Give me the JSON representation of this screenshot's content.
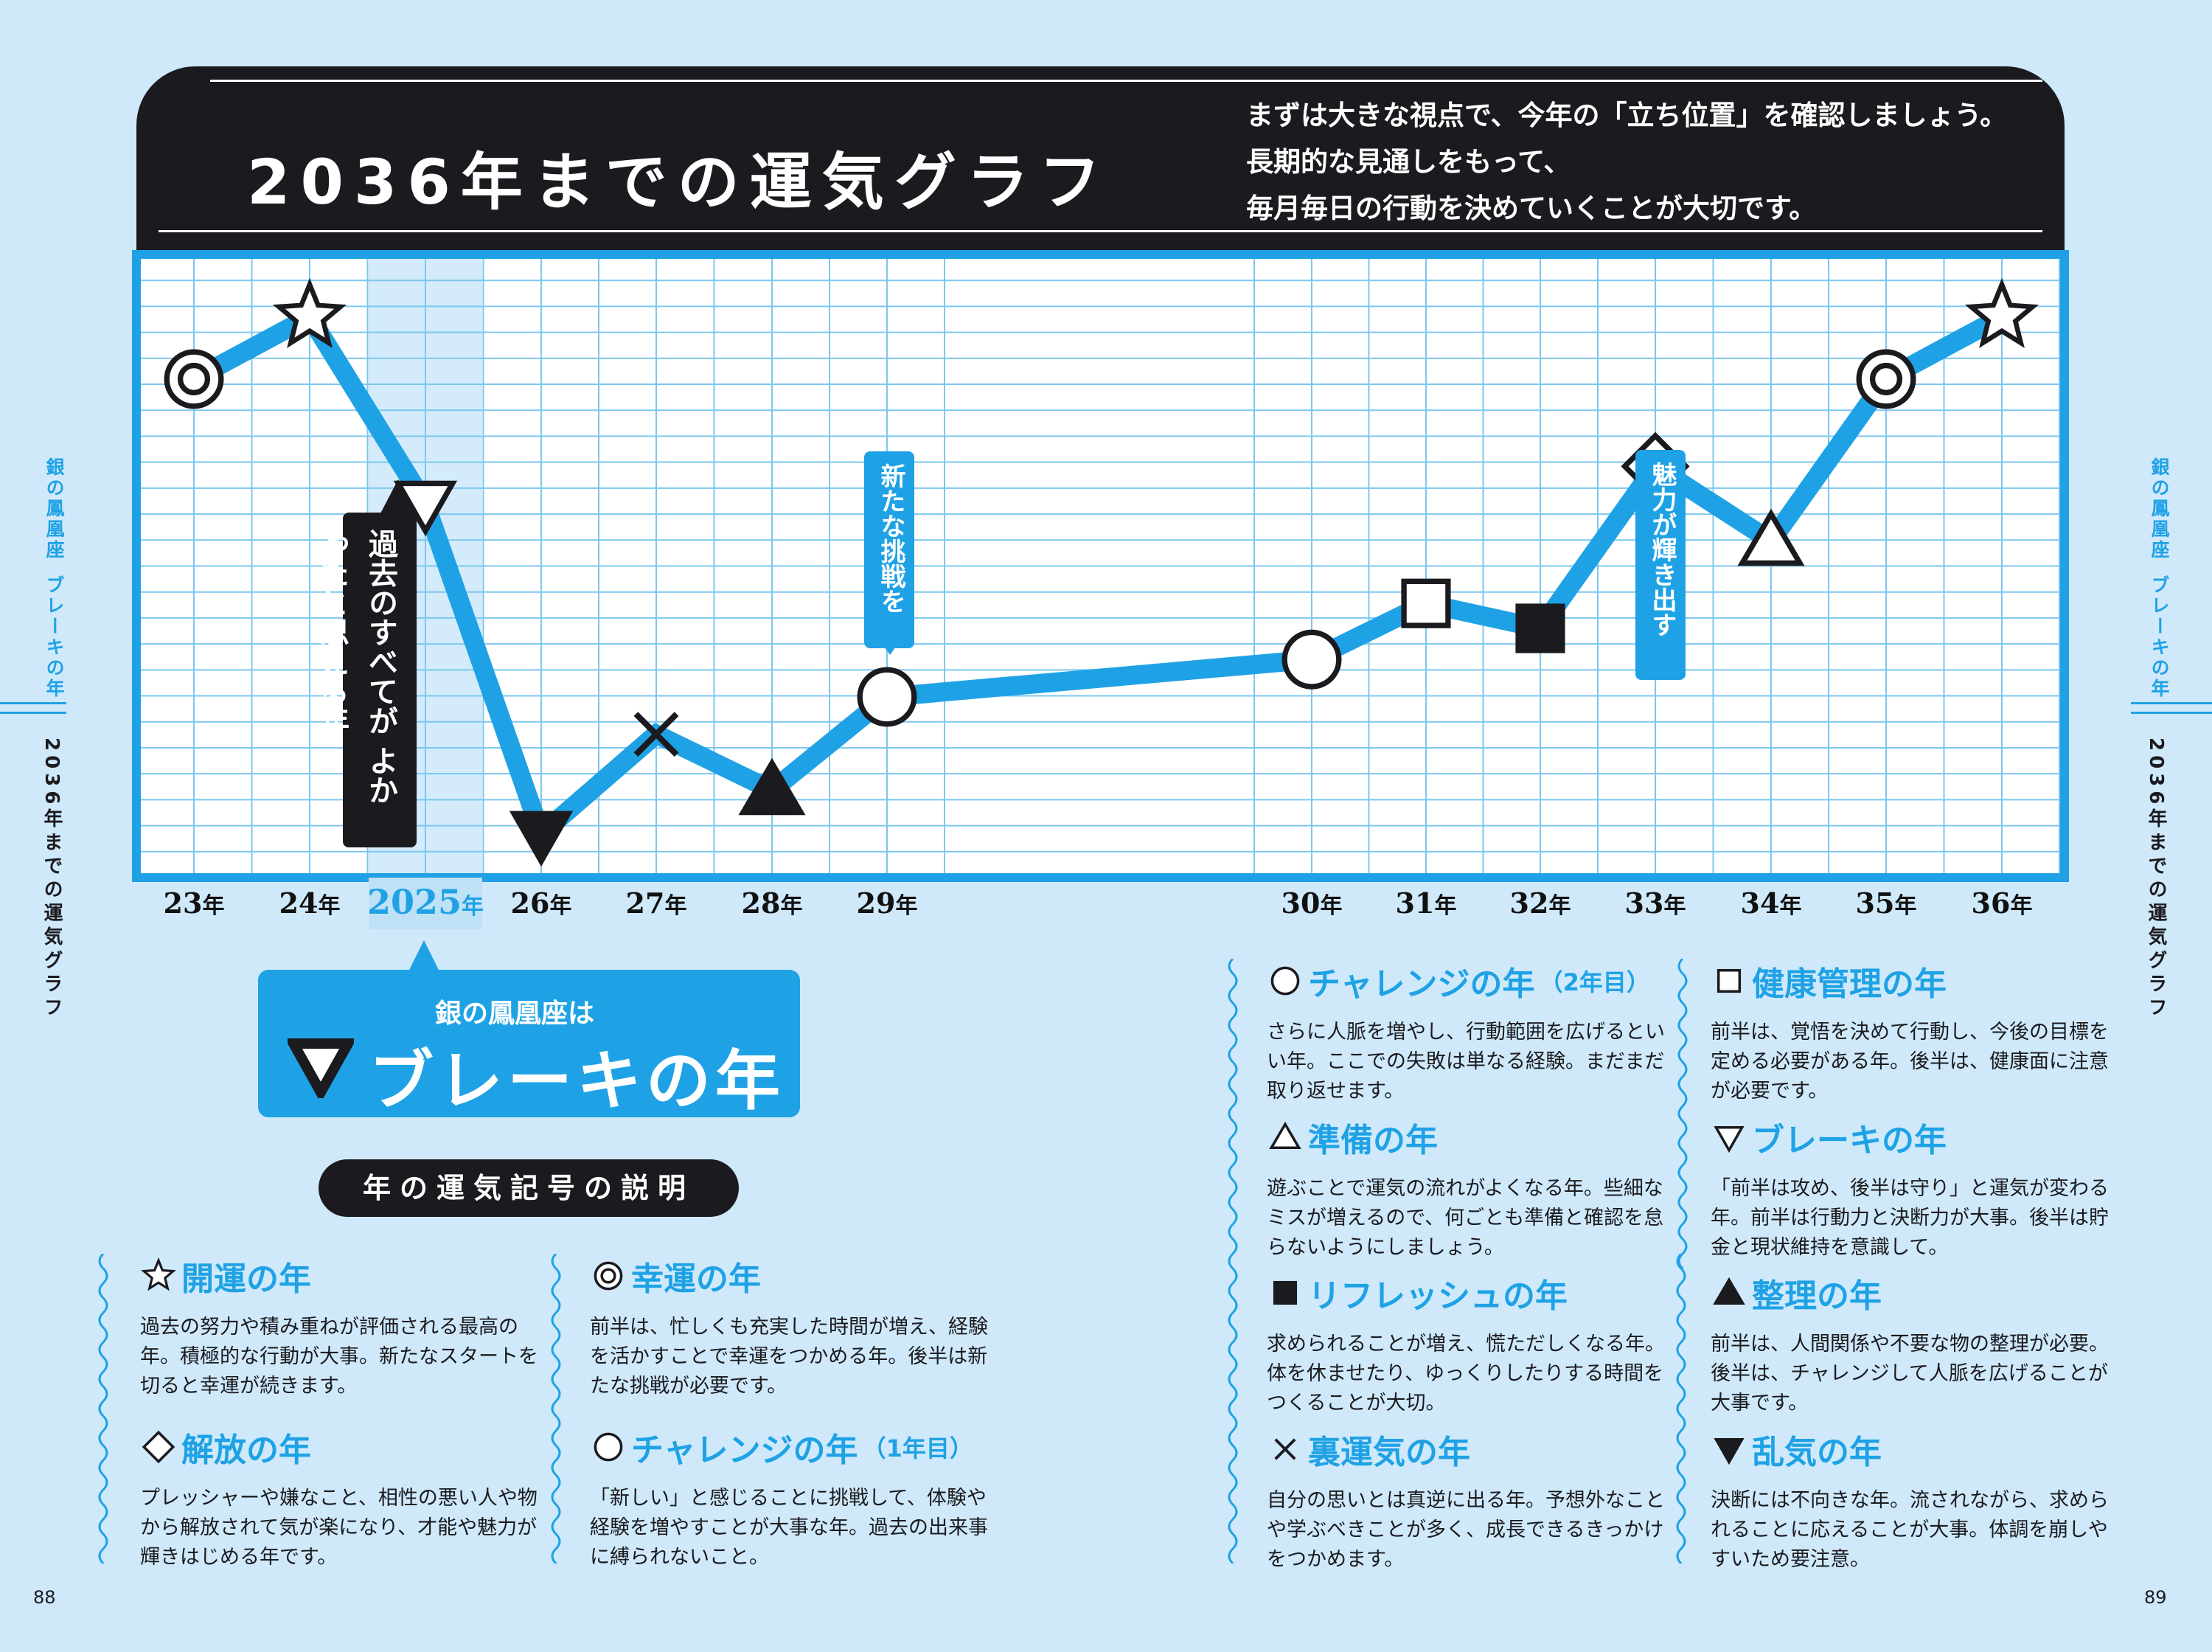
{
  "header": {
    "title": "2036年までの運気グラフ",
    "intro": [
      "まずは大きな視点で、今年の「立ち位置」を確認しましょう。",
      "長期的な見通しをもって、",
      "毎月毎日の行動を決めていくことが大切です。"
    ]
  },
  "chart_data": {
    "type": "line",
    "title": "2036年までの運気グラフ",
    "x": [
      "23",
      "24",
      "2025",
      "26",
      "27",
      "28",
      "29",
      "30",
      "31",
      "32",
      "33",
      "34",
      "35",
      "36"
    ],
    "x_suffix": "年",
    "values": [
      80,
      90,
      60,
      7,
      23,
      14,
      29,
      35,
      44,
      40,
      66,
      54,
      80,
      90
    ],
    "symbols": [
      "double-circle",
      "star",
      "down-triangle-outline",
      "down-triangle-filled",
      "cross",
      "up-triangle-filled",
      "circle",
      "circle",
      "square-outline",
      "square-filled",
      "diamond",
      "up-triangle-outline",
      "double-circle",
      "star"
    ],
    "ylim": [
      0,
      100
    ],
    "grid": true,
    "highlight_x": "2025",
    "line_color": "#1fa2e5",
    "annotations": [
      {
        "x": "2025",
        "text": "過去のすべてが よかったと思える年"
      },
      {
        "x": "29",
        "text": "新たな挑戦を"
      },
      {
        "x": "33",
        "text": "魅力が輝き出す"
      }
    ]
  },
  "current": {
    "sub": "銀の鳳凰座は",
    "main": "ブレーキの年"
  },
  "legend_title": "年の運気記号の説明",
  "legend": [
    {
      "icon": "star",
      "title": "開運の年",
      "suffix": "",
      "body": "過去の努力や積み重ねが評価される最高の年。積極的な行動が大事。新たなスタートを切ると幸運が続きます。"
    },
    {
      "icon": "double-circle",
      "title": "幸運の年",
      "suffix": "",
      "body": "前半は、忙しくも充実した時間が増え、経験を活かすことで幸運をつかめる年。後半は新たな挑戦が必要です。"
    },
    {
      "icon": "diamond",
      "title": "解放の年",
      "suffix": "",
      "body": "プレッシャーや嫌なこと、相性の悪い人や物から解放されて気が楽になり、才能や魅力が輝きはじめる年です。"
    },
    {
      "icon": "circle",
      "title": "チャレンジの年",
      "suffix": "（1年目）",
      "body": "「新しい」と感じることに挑戦して、体験や経験を増やすことが大事な年。過去の出来事に縛られないこと。"
    },
    {
      "icon": "circle",
      "title": "チャレンジの年",
      "suffix": "（2年目）",
      "body": "さらに人脈を増やし、行動範囲を広げるといい年。ここでの失敗は単なる経験。まだまだ取り返せます。"
    },
    {
      "icon": "square-outline",
      "title": "健康管理の年",
      "suffix": "",
      "body": "前半は、覚悟を決めて行動し、今後の目標を定める必要がある年。後半は、健康面に注意が必要です。"
    },
    {
      "icon": "up-triangle-outline",
      "title": "準備の年",
      "suffix": "",
      "body": "遊ぶことで運気の流れがよくなる年。些細なミスが増えるので、何ごとも準備と確認を怠らないようにしましょう。"
    },
    {
      "icon": "down-triangle-outline",
      "title": "ブレーキの年",
      "suffix": "",
      "body": "「前半は攻め、後半は守り」と運気が変わる年。前半は行動力と決断力が大事。後半は貯金と現状維持を意識して。"
    },
    {
      "icon": "square-filled",
      "title": "リフレッシュの年",
      "suffix": "",
      "body": "求められることが増え、慌ただしくなる年。体を休ませたり、ゆっくりしたりする時間をつくることが大切。"
    },
    {
      "icon": "up-triangle-filled",
      "title": "整理の年",
      "suffix": "",
      "body": "前半は、人間関係や不要な物の整理が必要。後半は、チャレンジして人脈を広げることが大事です。"
    },
    {
      "icon": "cross",
      "title": "裏運気の年",
      "suffix": "",
      "body": "自分の思いとは真逆に出る年。予想外なことや学ぶべきことが多く、成長できるきっかけをつかめます。"
    },
    {
      "icon": "down-triangle-filled",
      "title": "乱気の年",
      "suffix": "",
      "body": "決断には不向きな年。流されながら、求められることに応えることが大事。体調を崩しやすいため要注意。"
    }
  ],
  "side_left": {
    "top": "銀の鳳凰座",
    "mid": "ブレーキの年",
    "bottom": "2036年までの運気グラフ"
  },
  "side_right": {
    "top": "銀の鳳凰座",
    "mid": "ブレーキの年",
    "bottom": "2036年までの運気グラフ"
  },
  "pages": {
    "left": "88",
    "right": "89"
  }
}
